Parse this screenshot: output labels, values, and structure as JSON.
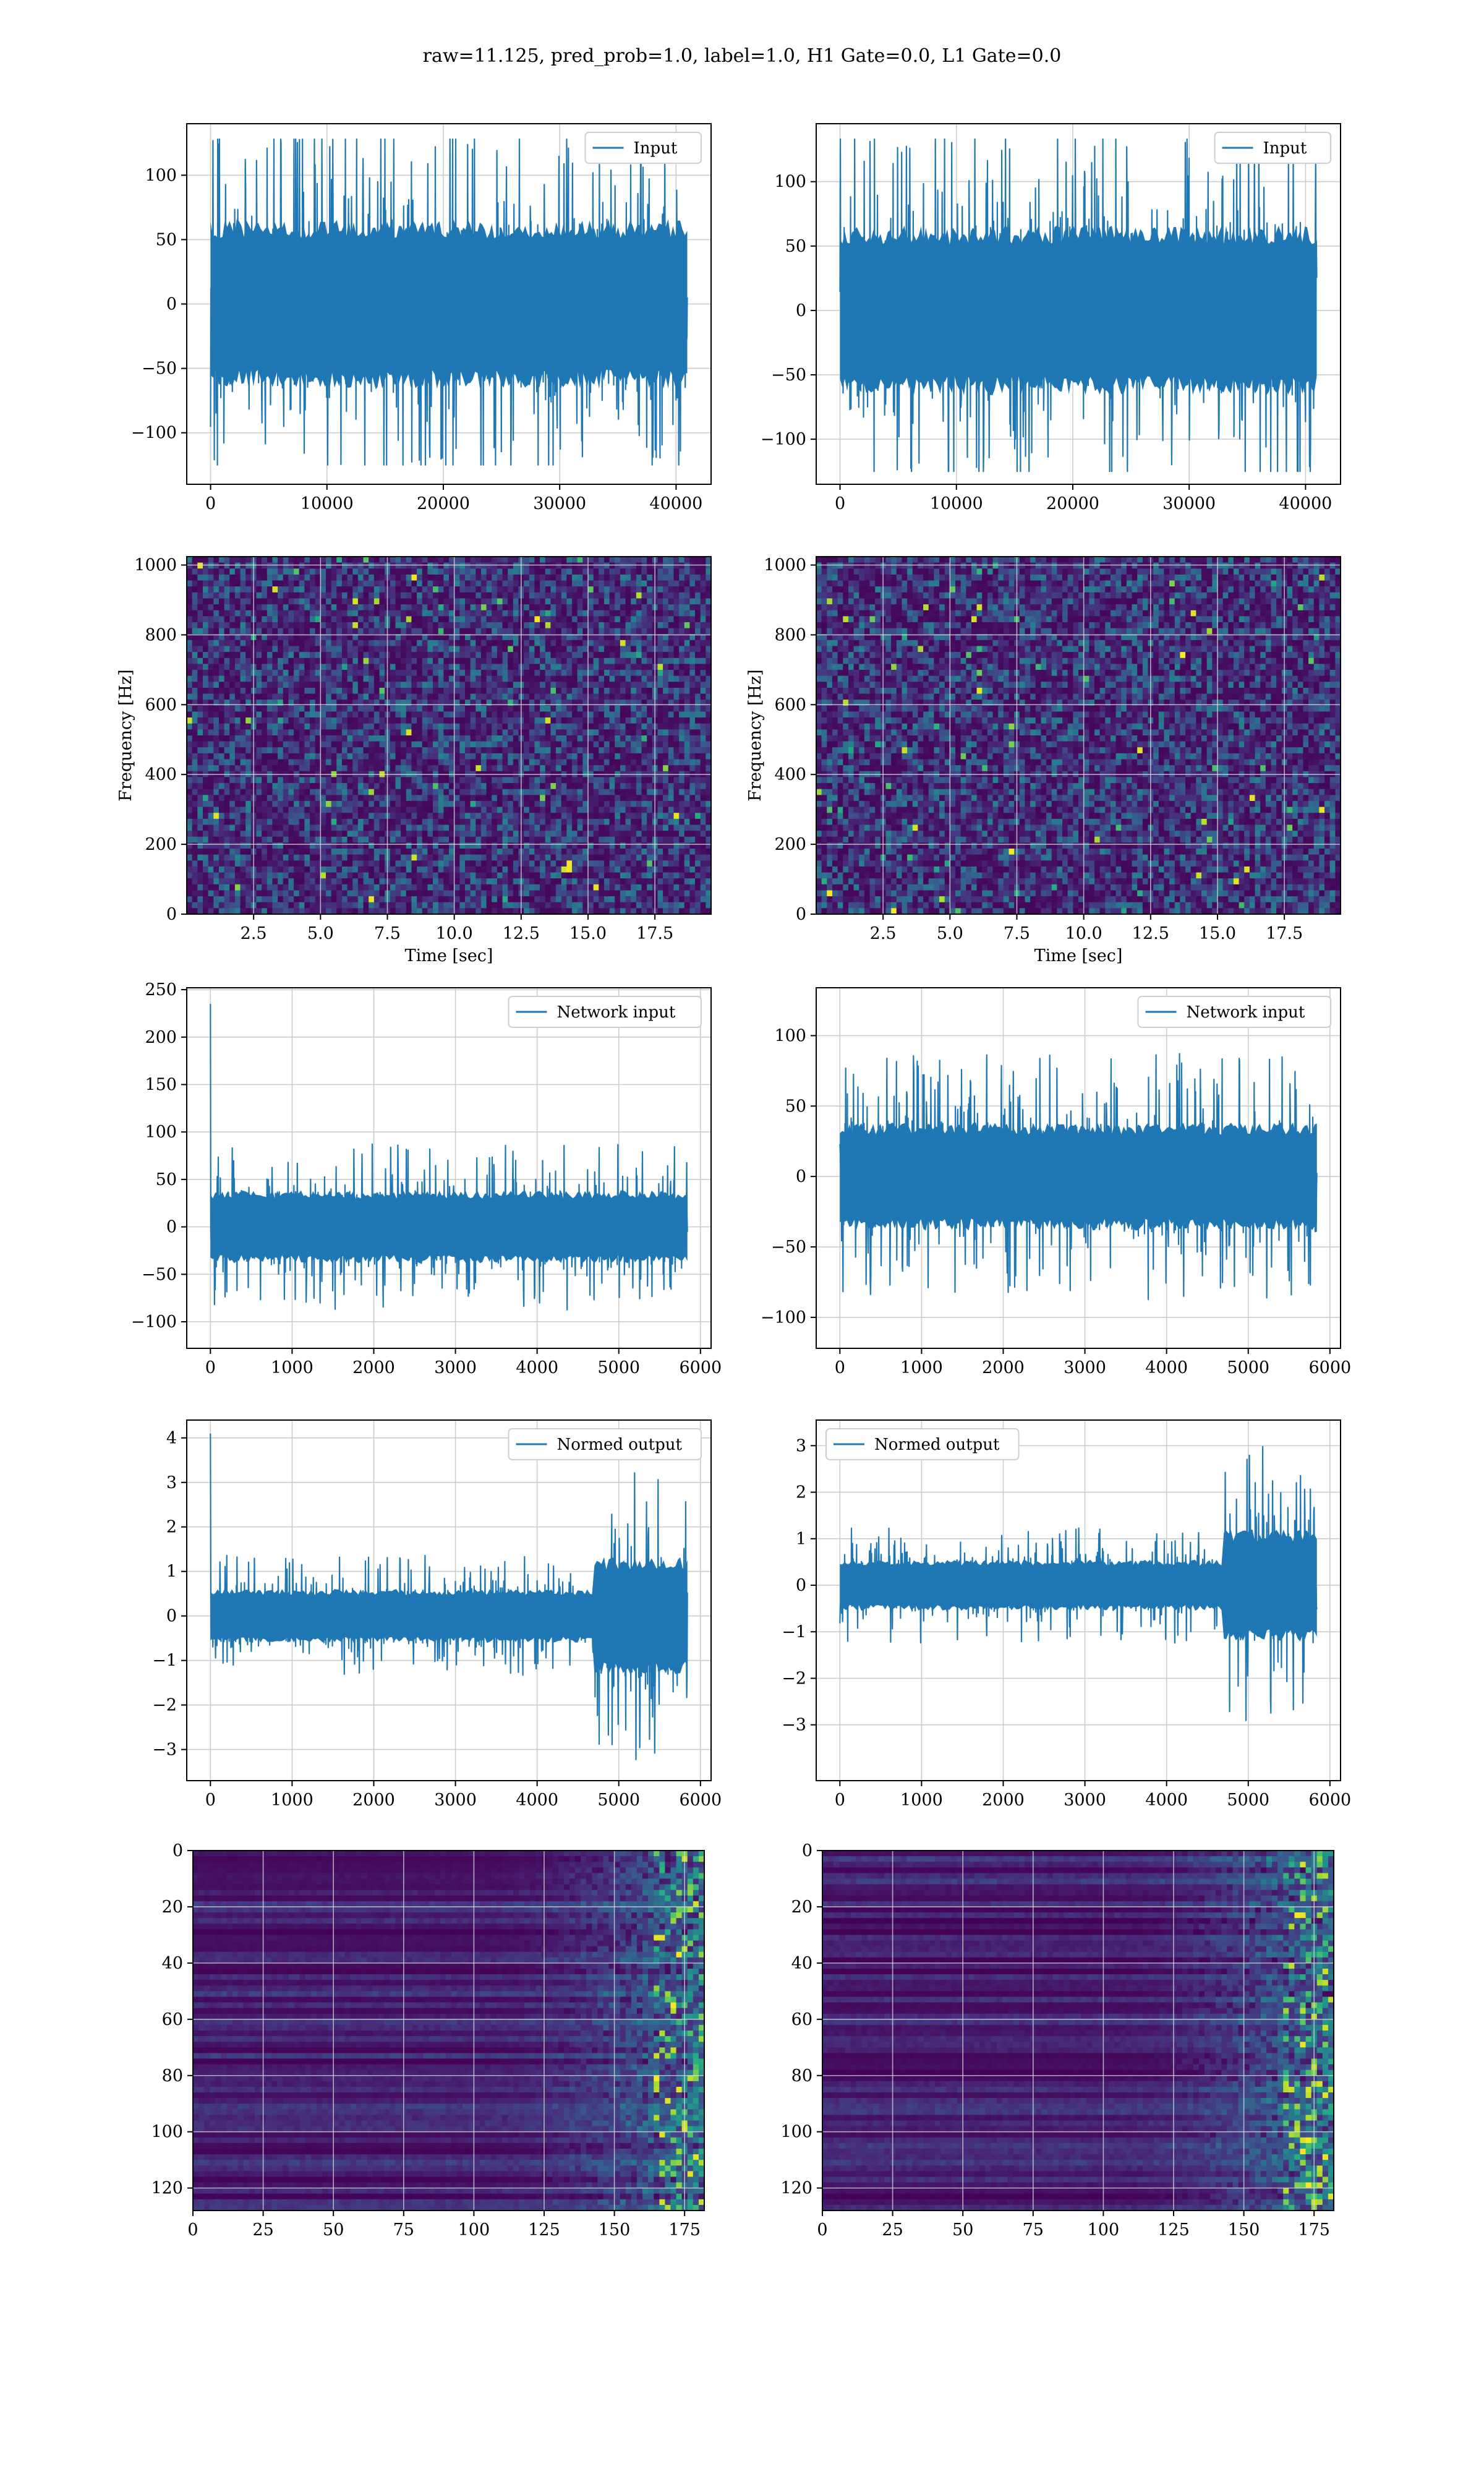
{
  "figure": {
    "suptitle": "raw=11.125, pred_prob=1.0, label=1.0, H1 Gate=0.0, L1 Gate=0.0"
  },
  "colors": {
    "line": "#1f77b4",
    "grid": "#cccccc",
    "viridis": [
      "#440154",
      "#472d7b",
      "#3b528b",
      "#2c728e",
      "#21918c",
      "#28ae80",
      "#5ec962",
      "#addc30",
      "#fde725"
    ]
  },
  "chart_data": [
    {
      "id": "input-h1",
      "type": "line",
      "column": "left",
      "series": [
        {
          "name": "Input",
          "x_range": [
            0,
            40960
          ],
          "amplitude_range": [
            -125,
            128
          ],
          "bulk_range": [
            -60,
            60
          ]
        }
      ],
      "xlim": [
        -2048,
        43008
      ],
      "ylim": [
        -140,
        140
      ],
      "xticks": [
        0,
        10000,
        20000,
        30000,
        40000
      ],
      "yticks": [
        -100,
        -50,
        0,
        50,
        100
      ],
      "legend": "top-right",
      "grid": true
    },
    {
      "id": "input-l1",
      "type": "line",
      "column": "right",
      "series": [
        {
          "name": "Input",
          "x_range": [
            0,
            40960
          ],
          "amplitude_range": [
            -125,
            133
          ],
          "bulk_range": [
            -60,
            60
          ]
        }
      ],
      "xlim": [
        -2048,
        43008
      ],
      "ylim": [
        -135,
        145
      ],
      "xticks": [
        0,
        10000,
        20000,
        30000,
        40000
      ],
      "yticks": [
        -100,
        -50,
        0,
        50,
        100
      ],
      "legend": "top-right",
      "grid": true
    },
    {
      "id": "spectrogram-h1",
      "type": "heatmap",
      "column": "left",
      "xlabel": "Time [sec]",
      "ylabel": "Frequency [Hz]",
      "xlim": [
        0,
        19.6
      ],
      "ylim": [
        0,
        1024
      ],
      "xticks": [
        2.5,
        5.0,
        7.5,
        10.0,
        12.5,
        15.0,
        17.5
      ],
      "yticks": [
        0,
        200,
        400,
        600,
        800,
        1000
      ],
      "colormap": "viridis",
      "grid": true
    },
    {
      "id": "spectrogram-l1",
      "type": "heatmap",
      "column": "right",
      "xlabel": "Time [sec]",
      "ylabel": "Frequency [Hz]",
      "xlim": [
        0,
        19.6
      ],
      "ylim": [
        0,
        1024
      ],
      "xticks": [
        2.5,
        5.0,
        7.5,
        10.0,
        12.5,
        15.0,
        17.5
      ],
      "yticks": [
        0,
        200,
        400,
        600,
        800,
        1000
      ],
      "colormap": "viridis",
      "grid": true
    },
    {
      "id": "network-input-h1",
      "type": "line",
      "column": "left",
      "series": [
        {
          "name": "Network input",
          "x_range": [
            0,
            5840
          ],
          "amplitude_range": [
            -110,
            235
          ],
          "bulk_range": [
            -35,
            35
          ]
        }
      ],
      "xlim": [
        -290,
        6130
      ],
      "ylim": [
        -128,
        252
      ],
      "xticks": [
        0,
        1000,
        2000,
        3000,
        4000,
        5000,
        6000
      ],
      "yticks": [
        -100,
        -50,
        0,
        50,
        100,
        150,
        200,
        250
      ],
      "legend": "top-right",
      "grid": true
    },
    {
      "id": "network-input-l1",
      "type": "line",
      "column": "right",
      "series": [
        {
          "name": "Network input",
          "x_range": [
            0,
            5840
          ],
          "amplitude_range": [
            -110,
            103
          ],
          "bulk_range": [
            -35,
            35
          ]
        }
      ],
      "xlim": [
        -290,
        6130
      ],
      "ylim": [
        -122,
        134
      ],
      "xticks": [
        0,
        1000,
        2000,
        3000,
        4000,
        5000,
        6000
      ],
      "yticks": [
        -100,
        -50,
        0,
        50,
        100
      ],
      "legend": "top-right",
      "grid": true
    },
    {
      "id": "normed-output-h1",
      "type": "line",
      "column": "left",
      "series": [
        {
          "name": "Normed output",
          "x_range": [
            0,
            5840
          ],
          "amplitude_range": [
            -3.3,
            4.1
          ],
          "bulk_range": [
            -0.55,
            0.55
          ]
        }
      ],
      "xlim": [
        -290,
        6130
      ],
      "ylim": [
        -3.7,
        4.4
      ],
      "xticks": [
        0,
        1000,
        2000,
        3000,
        4000,
        5000,
        6000
      ],
      "yticks": [
        -3,
        -2,
        -1,
        0,
        1,
        2,
        3,
        4
      ],
      "legend": "top-right",
      "grid": true
    },
    {
      "id": "normed-output-l1",
      "type": "line",
      "column": "right",
      "series": [
        {
          "name": "Normed output",
          "x_range": [
            0,
            5840
          ],
          "amplitude_range": [
            -3.6,
            3.3
          ],
          "bulk_range": [
            -0.5,
            0.5
          ]
        }
      ],
      "xlim": [
        -290,
        6130
      ],
      "ylim": [
        -4.2,
        3.55
      ],
      "xticks": [
        0,
        1000,
        2000,
        3000,
        4000,
        5000,
        6000
      ],
      "yticks": [
        -3,
        -2,
        -1,
        0,
        1,
        2,
        3
      ],
      "legend": "top-left",
      "grid": true
    },
    {
      "id": "feature-map-h1",
      "type": "heatmap",
      "column": "left",
      "xlim": [
        0,
        182
      ],
      "ylim": [
        128,
        0
      ],
      "xticks": [
        0,
        25,
        50,
        75,
        100,
        125,
        150,
        175
      ],
      "yticks": [
        0,
        20,
        40,
        60,
        80,
        100,
        120
      ],
      "colormap": "viridis",
      "grid": true
    },
    {
      "id": "feature-map-l1",
      "type": "heatmap",
      "column": "right",
      "xlim": [
        0,
        182
      ],
      "ylim": [
        128,
        0
      ],
      "xticks": [
        0,
        25,
        50,
        75,
        100,
        125,
        150,
        175
      ],
      "yticks": [
        0,
        20,
        40,
        60,
        80,
        100,
        120
      ],
      "colormap": "viridis",
      "grid": true
    }
  ]
}
